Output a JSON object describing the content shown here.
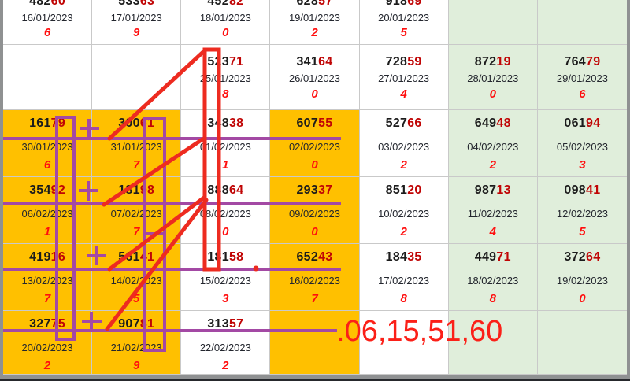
{
  "table": {
    "description": "lottery-results-grid",
    "rows": [
      {
        "cells": [
          {
            "number": "48260",
            "date": "16/01/2023",
            "digit": "6",
            "bg": "white"
          },
          {
            "number": "53363",
            "date": "17/01/2023",
            "digit": "9",
            "bg": "white"
          },
          {
            "number": "45282",
            "date": "18/01/2023",
            "digit": "0",
            "bg": "white"
          },
          {
            "number": "62857",
            "date": "19/01/2023",
            "digit": "2",
            "bg": "white"
          },
          {
            "number": "91869",
            "date": "20/01/2023",
            "digit": "5",
            "bg": "white"
          },
          {
            "number": "",
            "date": "",
            "digit": "",
            "bg": "green"
          },
          {
            "number": "",
            "date": "",
            "digit": "",
            "bg": "green"
          }
        ]
      },
      {
        "cells": [
          {
            "number": "",
            "date": "",
            "digit": "",
            "bg": "white"
          },
          {
            "number": "",
            "date": "",
            "digit": "",
            "bg": "white"
          },
          {
            "number": "52371",
            "date": "25/01/2023",
            "digit": "8",
            "bg": "white"
          },
          {
            "number": "34164",
            "date": "26/01/2023",
            "digit": "0",
            "bg": "white"
          },
          {
            "number": "72859",
            "date": "27/01/2023",
            "digit": "4",
            "bg": "white"
          },
          {
            "number": "87219",
            "date": "28/01/2023",
            "digit": "0",
            "bg": "green"
          },
          {
            "number": "76479",
            "date": "29/01/2023",
            "digit": "6",
            "bg": "green"
          }
        ]
      },
      {
        "cells": [
          {
            "number": "16179",
            "date": "30/01/2023",
            "digit": "6",
            "bg": "orange"
          },
          {
            "number": "30061",
            "date": "31/01/2023",
            "digit": "7",
            "bg": "orange"
          },
          {
            "number": "34838",
            "date": "01/02/2023",
            "digit": "1",
            "bg": "white"
          },
          {
            "number": "60755",
            "date": "02/02/2023",
            "digit": "0",
            "bg": "orange"
          },
          {
            "number": "52766",
            "date": "03/02/2023",
            "digit": "2",
            "bg": "white"
          },
          {
            "number": "64948",
            "date": "04/02/2023",
            "digit": "2",
            "bg": "green"
          },
          {
            "number": "06194",
            "date": "05/02/2023",
            "digit": "3",
            "bg": "green"
          }
        ]
      },
      {
        "cells": [
          {
            "number": "35492",
            "date": "06/02/2023",
            "digit": "1",
            "bg": "orange"
          },
          {
            "number": "18198",
            "date": "07/02/2023",
            "digit": "7",
            "bg": "orange"
          },
          {
            "number": "88864",
            "date": "08/02/2023",
            "digit": "0",
            "bg": "white"
          },
          {
            "number": "29337",
            "date": "09/02/2023",
            "digit": "0",
            "bg": "orange"
          },
          {
            "number": "85120",
            "date": "10/02/2023",
            "digit": "2",
            "bg": "white"
          },
          {
            "number": "98713",
            "date": "11/02/2023",
            "digit": "4",
            "bg": "green"
          },
          {
            "number": "09841",
            "date": "12/02/2023",
            "digit": "5",
            "bg": "green"
          }
        ]
      },
      {
        "cells": [
          {
            "number": "41916",
            "date": "13/02/2023",
            "digit": "7",
            "bg": "orange"
          },
          {
            "number": "56141",
            "date": "14/02/2023",
            "digit": "5",
            "bg": "orange"
          },
          {
            "number": "18158",
            "date": "15/02/2023",
            "digit": "3",
            "bg": "white"
          },
          {
            "number": "65243",
            "date": "16/02/2023",
            "digit": "7",
            "bg": "orange"
          },
          {
            "number": "18435",
            "date": "17/02/2023",
            "digit": "8",
            "bg": "white"
          },
          {
            "number": "44971",
            "date": "18/02/2023",
            "digit": "8",
            "bg": "green"
          },
          {
            "number": "37264",
            "date": "19/02/2023",
            "digit": "0",
            "bg": "green"
          }
        ]
      },
      {
        "cells": [
          {
            "number": "32775",
            "date": "20/02/2023",
            "digit": "2",
            "bg": "orange"
          },
          {
            "number": "90781",
            "date": "21/02/2023",
            "digit": "9",
            "bg": "orange"
          },
          {
            "number": "31357",
            "date": "22/02/2023",
            "digit": "2",
            "bg": "white"
          },
          {
            "number": "",
            "date": "",
            "digit": "",
            "bg": "orange"
          },
          {
            "number": "",
            "date": "",
            "digit": "",
            "bg": "white"
          },
          {
            "number": "",
            "date": "",
            "digit": "",
            "bg": "green"
          },
          {
            "number": "",
            "date": "",
            "digit": "",
            "bg": "green"
          }
        ]
      }
    ]
  },
  "annotation": {
    "purple_color": "#a349a4",
    "red_color": "#ed2b20",
    "prediction": {
      "dot": ".",
      "text": "06,15,51,60",
      "color": "#fb2018"
    }
  },
  "colors": {
    "cell_orange": "#ffc000",
    "cell_green": "#e0eedb",
    "cell_white": "#ffffff",
    "number_dark": "#1c1c1c",
    "number_red": "#c00505",
    "digit_red": "#ff0e0e",
    "gridline": "#c9c9c9",
    "frame_gray": "#8f9192",
    "bottom_edge": "#26282c"
  }
}
